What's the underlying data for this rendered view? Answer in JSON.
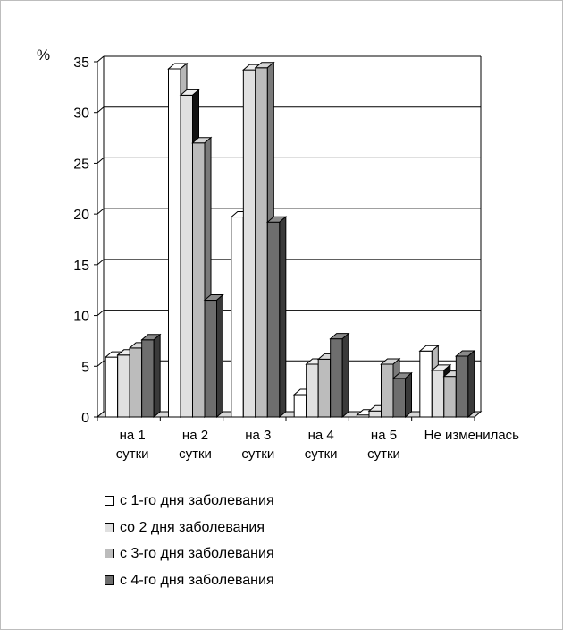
{
  "chart_data": {
    "type": "bar",
    "ylabel": "%",
    "ylim": [
      0,
      35
    ],
    "yticks": [
      0,
      5,
      10,
      15,
      20,
      25,
      30,
      35
    ],
    "grid": true,
    "legend_position": "bottom",
    "categories": [
      {
        "line1": "на 1",
        "line2": "сутки"
      },
      {
        "line1": "на 2",
        "line2": "сутки"
      },
      {
        "line1": "на 3",
        "line2": "сутки"
      },
      {
        "line1": "на 4",
        "line2": "сутки"
      },
      {
        "line1": "на 5",
        "line2": "сутки"
      },
      {
        "line1": "Не изменилась",
        "line2": ""
      }
    ],
    "series": [
      {
        "name": "с 1-го дня заболевания",
        "color": "#ffffff",
        "top": "#ffffff",
        "side": "#b8b8b8",
        "values": [
          5.9,
          34.3,
          19.7,
          2.2,
          0.2,
          6.5
        ]
      },
      {
        "name": "со 2 дня заболевания",
        "color": "#e0e0e0",
        "top": "#ededed",
        "side": "#111111",
        "values": [
          6.1,
          31.7,
          34.2,
          5.2,
          0.6,
          4.6
        ]
      },
      {
        "name": "с 3-го дня заболевания",
        "color": "#bcbcbc",
        "top": "#d6d6d6",
        "side": "#7a7a7a",
        "values": [
          6.8,
          27.0,
          34.4,
          5.7,
          5.2,
          4.0
        ]
      },
      {
        "name": "с 4-го дня заболевания",
        "color": "#6e6e6e",
        "top": "#8a8a8a",
        "side": "#3a3a3a",
        "values": [
          7.6,
          11.5,
          19.2,
          7.7,
          3.8,
          6.0
        ]
      }
    ]
  }
}
